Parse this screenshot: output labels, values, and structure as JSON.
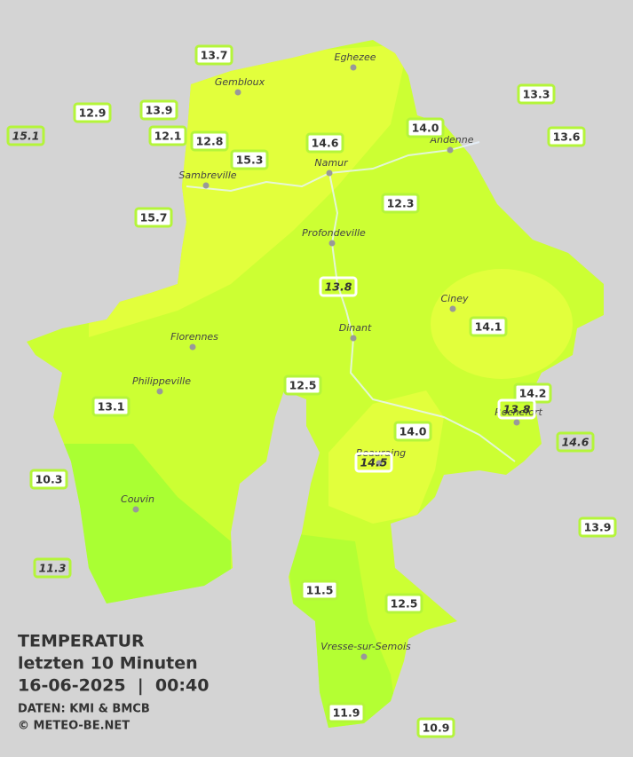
{
  "legend": {
    "title": "TEMPERATUR",
    "period": "letzten 10 Minuten",
    "datetime": "16-06-2025  |  00:40",
    "source": "DATEN: KMI & BMCB",
    "copyright": "© METEO-BE.NET"
  },
  "places": [
    "Eghezee",
    "Gembloux",
    "Andenne",
    "Namur",
    "Sambreville",
    "Profondeville",
    "Ciney",
    "Dinant",
    "Florennes",
    "Philippeville",
    "Rochefort",
    "Beauraing",
    "Couvin",
    "Vresse-sur-Semois"
  ],
  "stations": [
    "13.7",
    "12.9",
    "13.9",
    "15.1",
    "12.1",
    "12.8",
    "14.6",
    "14.0",
    "15.3",
    "13.3",
    "13.6",
    "12.3",
    "15.7",
    "13.8",
    "14.1",
    "12.5",
    "13.1",
    "14.2",
    "13.8",
    "14.6",
    "14.0",
    "14.5",
    "10.3",
    "11.3",
    "13.9",
    "11.5",
    "12.5",
    "11.9",
    "10.9"
  ]
}
